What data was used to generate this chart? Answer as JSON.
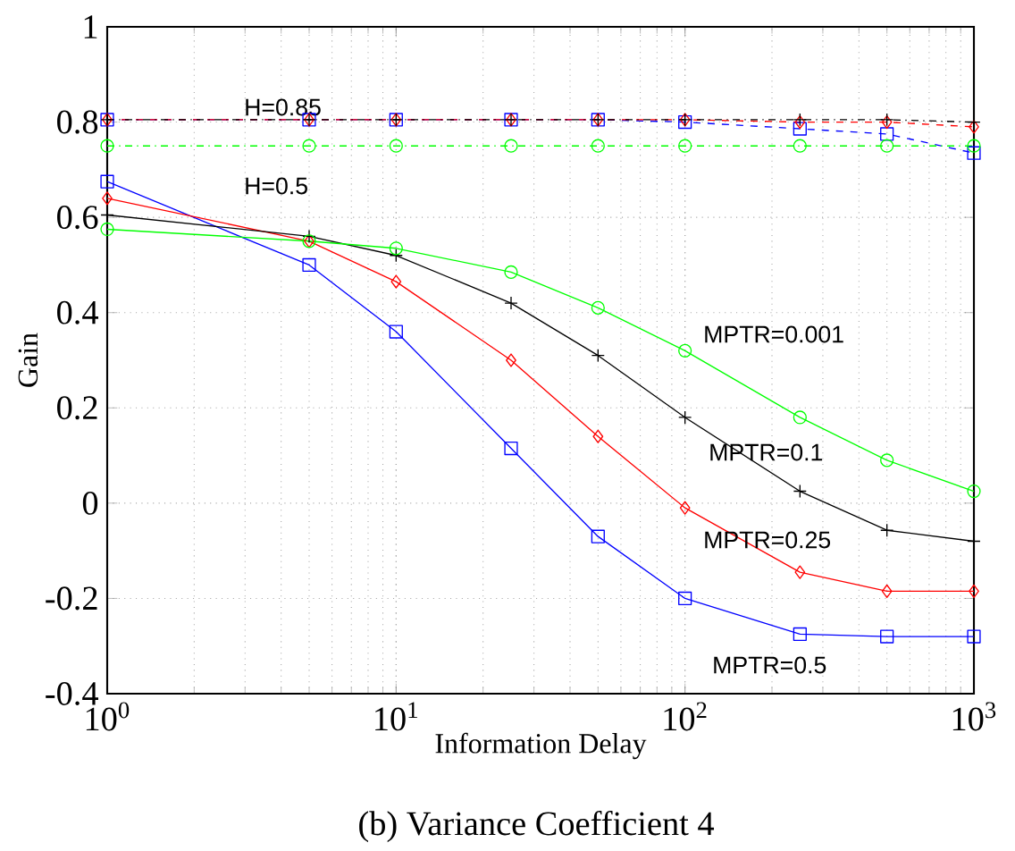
{
  "chart_data": {
    "type": "line",
    "xlabel": "Information Delay",
    "ylabel": "Gain",
    "log": "x",
    "grid": true,
    "x": [
      1,
      5,
      10,
      25,
      50,
      100,
      250,
      500,
      1000
    ],
    "xlim": [
      1,
      1000
    ],
    "ylim": [
      -0.4,
      1
    ],
    "xticks": [
      {
        "value": 1,
        "label": "10$^{0}$"
      },
      {
        "value": 10,
        "label": "10$^{1}$"
      },
      {
        "value": 100,
        "label": "10$^{2}$"
      },
      {
        "value": 1000,
        "label": "10$^{3}$"
      }
    ],
    "yticks": [
      -0.4,
      -0.2,
      0,
      0.2,
      0.4,
      0.6,
      0.8,
      1
    ],
    "series": [
      {
        "color": "#0000ff",
        "marker": "square",
        "line_style": "solid",
        "values": [
          0.675,
          0.5,
          0.36,
          0.115,
          -0.07,
          -0.2,
          -0.275,
          -0.28,
          -0.28
        ]
      },
      {
        "color": "#ff0000",
        "marker": "diamond",
        "line_style": "solid",
        "values": [
          0.64,
          0.55,
          0.465,
          0.3,
          0.14,
          -0.01,
          -0.145,
          -0.185,
          -0.185
        ]
      },
      {
        "color": "#000000",
        "marker": "plus",
        "line_style": "solid",
        "values": [
          0.605,
          0.56,
          0.52,
          0.42,
          0.31,
          0.18,
          0.025,
          -0.057,
          -0.08
        ]
      },
      {
        "color": "#00ff00",
        "marker": "circle",
        "line_style": "solid",
        "values": [
          0.575,
          0.55,
          0.535,
          0.485,
          0.41,
          0.32,
          0.18,
          0.09,
          0.025
        ]
      },
      {
        "color": "#0000ff",
        "marker": "square",
        "line_style": "dashed",
        "values": [
          0.805,
          0.805,
          0.805,
          0.805,
          0.805,
          0.8,
          0.786,
          0.775,
          0.735
        ]
      },
      {
        "color": "#ff0000",
        "marker": "diamond",
        "line_style": "dashed",
        "values": [
          0.805,
          0.805,
          0.805,
          0.805,
          0.805,
          0.805,
          0.8,
          0.8,
          0.79
        ]
      },
      {
        "color": "#000000",
        "marker": "plus",
        "line_style": "dashdot",
        "values": [
          0.805,
          0.805,
          0.805,
          0.805,
          0.805,
          0.805,
          0.805,
          0.805,
          0.8
        ]
      },
      {
        "color": "#00ff00",
        "marker": "circle",
        "line_style": "dashdot",
        "values": [
          0.75,
          0.75,
          0.75,
          0.75,
          0.75,
          0.75,
          0.75,
          0.75,
          0.75
        ]
      }
    ],
    "annotations": [
      "H=0.85",
      "H=0.5",
      "MPTR=0.001",
      "MPTR=0.1",
      "MPTR=0.25",
      "MPTR=0.5",
      "(b) Variance Coefficient 4"
    ]
  }
}
